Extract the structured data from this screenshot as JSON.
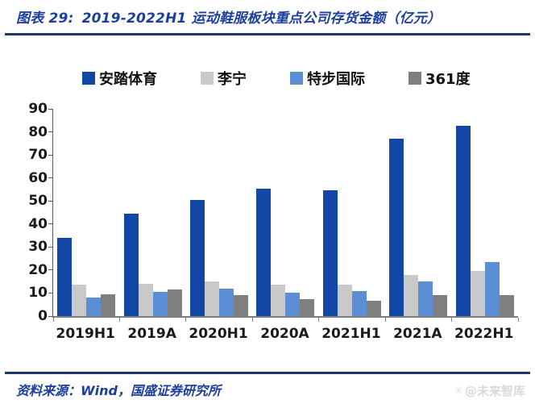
{
  "header": {
    "figure_label": "图表 29:",
    "title": "2019-2022H1 运动鞋服板块重点公司存货金额（亿元）"
  },
  "chart_data": {
    "type": "bar",
    "title": "2019-2022H1 运动鞋服板块重点公司存货金额（亿元）",
    "categories": [
      "2019H1",
      "2019A",
      "2020H1",
      "2020A",
      "2021H1",
      "2021A",
      "2022H1"
    ],
    "series": [
      {
        "name": "安踏体育",
        "color": "#1347a5",
        "values": [
          34,
          44.5,
          50.5,
          55.5,
          54.5,
          77,
          82.5
        ]
      },
      {
        "name": "李宁",
        "color": "#c9c9c9",
        "values": [
          13.5,
          14,
          15,
          13.5,
          13.5,
          18,
          19.5
        ]
      },
      {
        "name": "特步国际",
        "color": "#5b8ed4",
        "values": [
          8,
          10.5,
          12,
          10,
          11,
          15,
          23.5
        ]
      },
      {
        "name": "361度",
        "color": "#7f7f7f",
        "values": [
          9.5,
          11.5,
          9,
          7.5,
          6.5,
          9,
          9
        ]
      }
    ],
    "xlabel": "",
    "ylabel": "",
    "unit": "亿元",
    "ylim": [
      0,
      90
    ],
    "y_ticks": [
      0,
      10,
      20,
      30,
      40,
      50,
      60,
      70,
      80,
      90
    ],
    "grid": false,
    "legend_position": "top"
  },
  "footer": {
    "source": "资料来源：Wind，国盛证券研究所",
    "watermark": "@未来智库"
  },
  "colors": {
    "accent_rule": "#1f3864",
    "title_text": "#1c3f9e",
    "axis": "#808080"
  }
}
